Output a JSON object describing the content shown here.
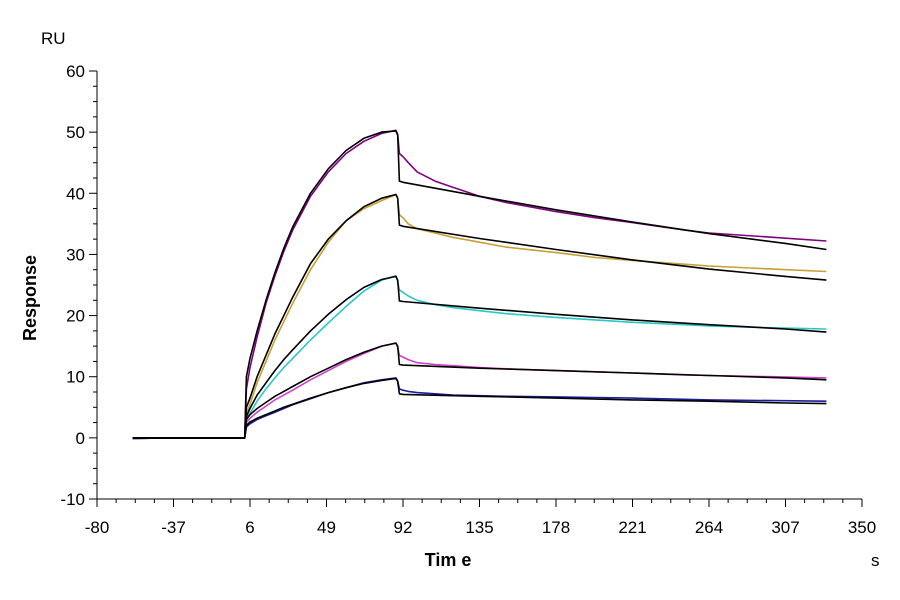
{
  "chart_data": {
    "type": "line",
    "xlabel": "Tim e",
    "ylabel": "Response",
    "x_unit": "s",
    "y_unit": "RU",
    "xlim": [
      -80,
      350
    ],
    "ylim": [
      -10,
      60
    ],
    "x_ticks": [
      -80,
      -37,
      6,
      49,
      92,
      135,
      178,
      221,
      264,
      307,
      350
    ],
    "y_ticks": [
      -10,
      0,
      10,
      20,
      30,
      40,
      50,
      60
    ],
    "grid": false,
    "legend": "none",
    "colors": {
      "axis": "#000000",
      "fit": "#000000",
      "purple": "#800080",
      "gold": "#c8a032",
      "cyan": "#28c8c8",
      "magenta": "#d040c8",
      "blue": "#1c1c9c"
    },
    "series": [
      {
        "color": "#800080",
        "x": [
          -60,
          -40,
          -20,
          0,
          3,
          4,
          6,
          10,
          15,
          20,
          25,
          30,
          40,
          50,
          60,
          70,
          80,
          88,
          89,
          90,
          92,
          95,
          100,
          110,
          120,
          135,
          150,
          178,
          200,
          221,
          250,
          264,
          300,
          330
        ],
        "y": [
          -0.1,
          0,
          0,
          0,
          0,
          8,
          11.5,
          16.5,
          22,
          26.5,
          30.5,
          34,
          39.5,
          43.5,
          46.5,
          48.5,
          49.8,
          50.3,
          49.6,
          46.5,
          46,
          45,
          43.5,
          42,
          41,
          39.5,
          38.5,
          37,
          36,
          35.2,
          34,
          33.5,
          32.8,
          32.2
        ]
      },
      {
        "color": "#c8a032",
        "x": [
          -60,
          -40,
          -20,
          0,
          3,
          4,
          6,
          10,
          15,
          20,
          25,
          30,
          40,
          50,
          60,
          70,
          80,
          88,
          89,
          90,
          92,
          95,
          100,
          110,
          120,
          135,
          150,
          178,
          200,
          221,
          250,
          264,
          300,
          330
        ],
        "y": [
          -0.1,
          0,
          0,
          0,
          0,
          4,
          5.5,
          9,
          12.5,
          16,
          19,
          22,
          27.5,
          32,
          35.5,
          37.5,
          38.8,
          39.8,
          39.2,
          36.5,
          36,
          35,
          34.2,
          33.5,
          32.8,
          32,
          31.2,
          30.3,
          29.5,
          29,
          28.4,
          28.1,
          27.6,
          27.2
        ]
      },
      {
        "color": "#28c8c8",
        "x": [
          -60,
          -40,
          -20,
          0,
          3,
          4,
          6,
          10,
          15,
          20,
          25,
          30,
          40,
          50,
          60,
          70,
          80,
          88,
          89,
          90,
          92,
          95,
          100,
          110,
          120,
          135,
          150,
          178,
          200,
          221,
          250,
          264,
          300,
          330
        ],
        "y": [
          -0.1,
          0,
          0,
          0,
          0,
          3,
          4,
          6,
          8,
          9.8,
          11.5,
          13,
          16,
          18.8,
          21.5,
          24,
          25.8,
          26.5,
          25.5,
          24.2,
          23.8,
          23.2,
          22.5,
          21.8,
          21.3,
          20.8,
          20.3,
          19.7,
          19.3,
          18.9,
          18.5,
          18.3,
          18,
          17.8
        ]
      },
      {
        "color": "#d040c8",
        "x": [
          -60,
          -40,
          -20,
          0,
          3,
          4,
          6,
          10,
          15,
          20,
          25,
          30,
          40,
          50,
          60,
          70,
          80,
          88,
          89,
          90,
          92,
          95,
          100,
          110,
          120,
          135,
          150,
          178,
          200,
          221,
          250,
          264,
          300,
          330
        ],
        "y": [
          -0.1,
          0,
          0,
          0,
          0,
          2.5,
          3.2,
          4.2,
          5.2,
          6.2,
          7,
          7.8,
          9.5,
          11,
          12.5,
          13.8,
          15,
          15.5,
          14.8,
          13.5,
          13.2,
          12.8,
          12.3,
          12,
          11.8,
          11.5,
          11.3,
          11,
          10.8,
          10.6,
          10.3,
          10.2,
          10,
          9.8
        ]
      },
      {
        "color": "#1c1c9c",
        "x": [
          -60,
          -40,
          -20,
          0,
          3,
          4,
          6,
          10,
          15,
          20,
          25,
          30,
          40,
          50,
          60,
          70,
          80,
          88,
          89,
          90,
          92,
          95,
          100,
          110,
          120,
          135,
          150,
          178,
          200,
          221,
          250,
          264,
          300,
          330
        ],
        "y": [
          -0.1,
          0,
          0,
          0,
          0,
          1.8,
          2.3,
          3,
          3.6,
          4.2,
          4.8,
          5.4,
          6.4,
          7.4,
          8.2,
          9,
          9.5,
          9.8,
          9.3,
          8,
          7.8,
          7.6,
          7.4,
          7.2,
          7,
          6.9,
          6.8,
          6.7,
          6.6,
          6.5,
          6.3,
          6.2,
          6.1,
          6
        ]
      }
    ],
    "fits": [
      {
        "color": "#000000",
        "x": [
          -60,
          0,
          3,
          4,
          6,
          10,
          15,
          20,
          25,
          30,
          40,
          50,
          60,
          70,
          80,
          88,
          89,
          90,
          92,
          135,
          178,
          221,
          264,
          307,
          330
        ],
        "y": [
          0,
          0,
          0,
          10,
          13,
          17.5,
          22.5,
          27,
          31,
          34.5,
          40,
          44,
          47,
          49,
          50,
          50.2,
          49.5,
          42,
          41.8,
          39.5,
          37.3,
          35.3,
          33.4,
          31.8,
          30.8
        ]
      },
      {
        "color": "#000000",
        "x": [
          -60,
          0,
          3,
          4,
          6,
          10,
          15,
          20,
          25,
          30,
          40,
          50,
          60,
          70,
          80,
          88,
          89,
          90,
          92,
          135,
          178,
          221,
          264,
          307,
          330
        ],
        "y": [
          0,
          0,
          0,
          5,
          6.5,
          10,
          13.5,
          17,
          20,
          23,
          28.5,
          32.5,
          35.5,
          37.8,
          39.2,
          39.8,
          39.2,
          34.8,
          34.6,
          32.6,
          30.8,
          29.1,
          27.6,
          26.4,
          25.8
        ]
      },
      {
        "color": "#000000",
        "x": [
          -60,
          0,
          3,
          4,
          6,
          10,
          15,
          20,
          25,
          30,
          40,
          50,
          60,
          70,
          80,
          88,
          89,
          90,
          92,
          135,
          178,
          221,
          264,
          307,
          330
        ],
        "y": [
          0,
          0,
          0,
          3.5,
          4.8,
          7,
          9,
          11,
          12.8,
          14.4,
          17.5,
          20.2,
          22.6,
          24.6,
          25.9,
          26.4,
          25.8,
          22.4,
          22.3,
          21.2,
          20.2,
          19.3,
          18.5,
          17.8,
          17.3
        ]
      },
      {
        "color": "#000000",
        "x": [
          -60,
          0,
          3,
          4,
          6,
          10,
          15,
          20,
          25,
          30,
          40,
          50,
          60,
          70,
          80,
          88,
          89,
          90,
          92,
          135,
          178,
          221,
          264,
          307,
          330
        ],
        "y": [
          0,
          0,
          0,
          3,
          3.8,
          4.8,
          5.8,
          6.8,
          7.6,
          8.4,
          10,
          11.4,
          12.8,
          14,
          15,
          15.5,
          15,
          12,
          11.9,
          11.4,
          11,
          10.6,
          10.2,
          9.8,
          9.5
        ]
      },
      {
        "color": "#000000",
        "x": [
          -60,
          0,
          3,
          4,
          6,
          10,
          15,
          20,
          25,
          30,
          40,
          50,
          60,
          70,
          80,
          88,
          89,
          90,
          92,
          135,
          178,
          221,
          264,
          307,
          330
        ],
        "y": [
          0,
          0,
          0,
          2,
          2.6,
          3.2,
          3.8,
          4.4,
          5,
          5.5,
          6.5,
          7.4,
          8.2,
          8.9,
          9.4,
          9.7,
          9.2,
          7.2,
          7.1,
          6.8,
          6.5,
          6.2,
          6,
          5.7,
          5.6
        ]
      }
    ]
  }
}
